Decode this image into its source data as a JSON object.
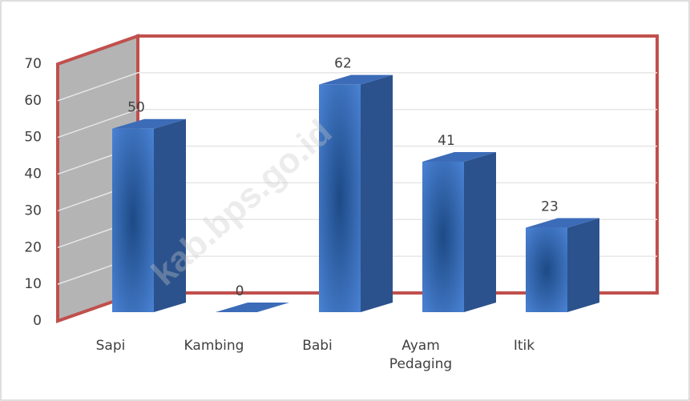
{
  "chart_data": {
    "type": "bar3d",
    "categories": [
      "Sapi",
      "Kambing",
      "Babi",
      "Ayam Pedaging",
      "Itik"
    ],
    "values": [
      50,
      0,
      62,
      41,
      23
    ],
    "color": "#3a6fc0",
    "ylim": [
      0,
      70
    ],
    "yticks": [
      0,
      10,
      20,
      30,
      40,
      50,
      60,
      70
    ],
    "grid": true,
    "watermark": "kab.bps.go.id"
  }
}
